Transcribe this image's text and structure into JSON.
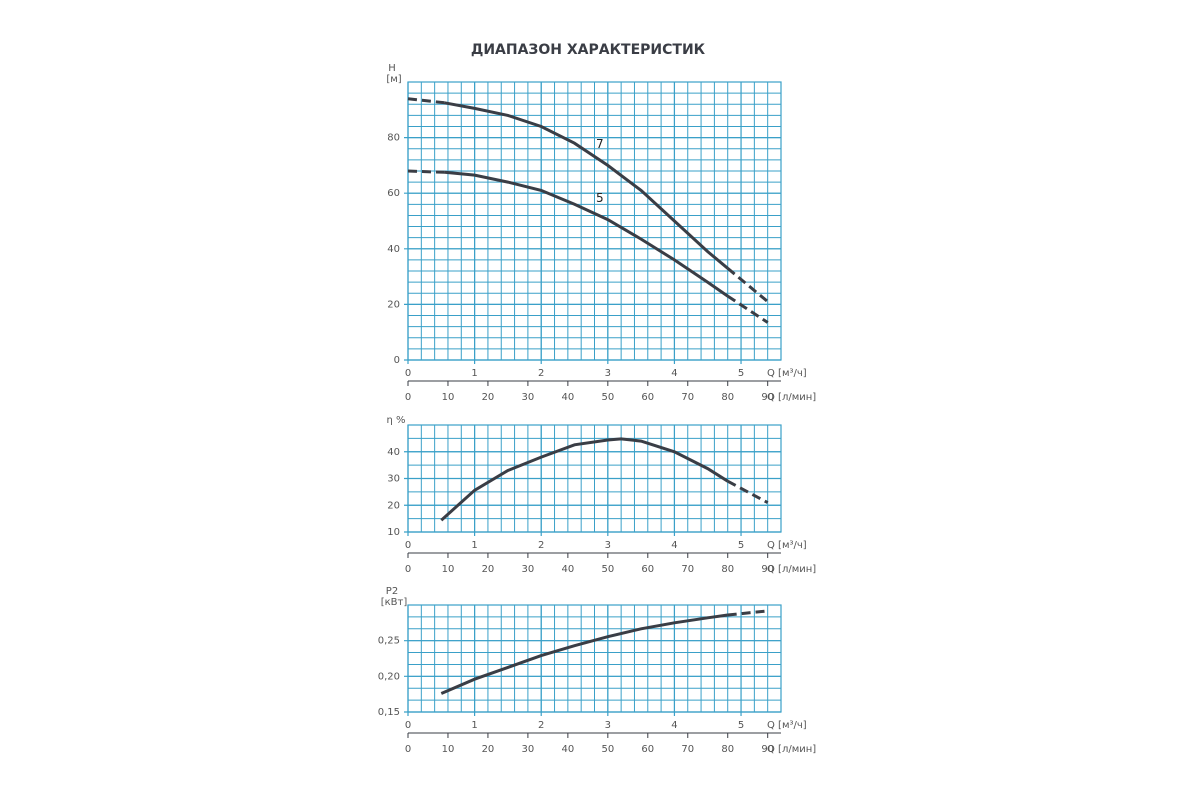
{
  "title": "ДИАПАЗОН ХАРАКТЕРИСТИК",
  "chart_data": [
    {
      "type": "line",
      "ylabel": "H",
      "yunit": "[м]",
      "xlabel": "Q [м³/ч]",
      "x2label": "Q [л/мин]",
      "x": [
        0,
        0.55,
        1,
        1.5,
        2,
        2.5,
        3,
        3.5,
        4,
        4.5,
        4.8,
        5.4
      ],
      "series": [
        {
          "name": "7",
          "color": "#3a3d45",
          "dashed_ends": [
            "start",
            "end"
          ],
          "values": [
            94,
            92.5,
            90.5,
            88,
            84,
            78,
            70,
            61,
            50,
            39,
            33,
            21
          ]
        },
        {
          "name": "5",
          "color": "#3a3d45",
          "dashed_ends": [
            "start",
            "end"
          ],
          "values": [
            68,
            67.5,
            66.5,
            64,
            61,
            56,
            50.5,
            43.5,
            36,
            28,
            23,
            13.5
          ]
        }
      ],
      "xlim": [
        0,
        5.6
      ],
      "xticks": [
        0,
        1,
        2,
        3,
        4,
        5
      ],
      "x2lim": [
        0,
        93.33
      ],
      "x2ticks": [
        0,
        10,
        20,
        30,
        40,
        50,
        60,
        70,
        80,
        90
      ],
      "ylim": [
        0,
        100
      ],
      "yticks": [
        0,
        20,
        40,
        60,
        80
      ],
      "grid": true
    },
    {
      "type": "line",
      "ylabel": "η %",
      "xlabel": "Q [м³/ч]",
      "x2label": "Q [л/мин]",
      "x": [
        0.5,
        1,
        1.5,
        2,
        2.5,
        3,
        3.2,
        3.5,
        4,
        4.5,
        4.8,
        5.4
      ],
      "series": [
        {
          "color": "#3a3d45",
          "dashed_ends": [
            "end"
          ],
          "values": [
            14.4,
            25.6,
            33,
            38,
            42.6,
            44.4,
            44.8,
            44,
            40,
            33.7,
            29,
            21
          ]
        }
      ],
      "xlim": [
        0,
        5.6
      ],
      "xticks": [
        0,
        1,
        2,
        3,
        4,
        5
      ],
      "x2lim": [
        0,
        93.33
      ],
      "x2ticks": [
        0,
        10,
        20,
        30,
        40,
        50,
        60,
        70,
        80,
        90
      ],
      "ylim": [
        10,
        50
      ],
      "yticks": [
        10,
        20,
        30,
        40
      ],
      "grid": true
    },
    {
      "type": "line",
      "ylabel": "P2",
      "yunit": "[кВт]",
      "xlabel": "Q [м³/ч]",
      "x2label": "Q [л/мин]",
      "x": [
        0.5,
        1,
        1.5,
        2,
        2.5,
        3,
        3.5,
        4,
        4.5,
        4.8,
        5.4
      ],
      "series": [
        {
          "color": "#3a3d45",
          "dashed_ends": [
            "end"
          ],
          "values": [
            0.176,
            0.196,
            0.2125,
            0.229,
            0.243,
            0.2556,
            0.2667,
            0.275,
            0.282,
            0.286,
            0.2917
          ]
        }
      ],
      "xlim": [
        0,
        5.6
      ],
      "xticks": [
        0,
        1,
        2,
        3,
        4,
        5
      ],
      "x2lim": [
        0,
        93.33
      ],
      "x2ticks": [
        0,
        10,
        20,
        30,
        40,
        50,
        60,
        70,
        80,
        90
      ],
      "ylim": [
        0.15,
        0.3
      ],
      "yticks": [
        {
          "value": 0.15,
          "label": "0,15"
        },
        {
          "value": 0.2,
          "label": "0,20"
        },
        {
          "value": 0.25,
          "label": "0,25"
        }
      ],
      "grid": true
    }
  ]
}
